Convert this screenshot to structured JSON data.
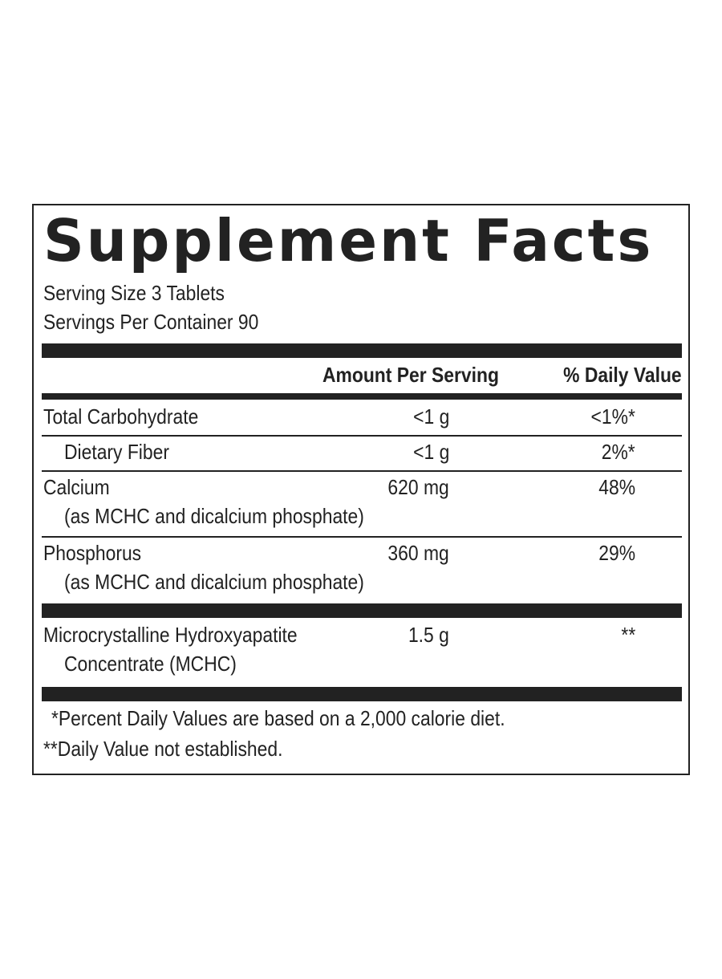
{
  "title": "Supplement Facts",
  "serving_size": "Serving Size 3 Tablets",
  "servings_per_container": "Servings Per Container 90",
  "header": {
    "amount": "Amount Per Serving",
    "dv": "% Daily Value"
  },
  "rows": [
    {
      "name": "Total Carbohydrate",
      "amount": "<1 g",
      "dv": "<1%*"
    },
    {
      "name": "Dietary Fiber",
      "amount": "<1 g",
      "dv": "2%*"
    },
    {
      "name": "Calcium",
      "note": "(as MCHC and dicalcium phosphate)",
      "amount": "620 mg",
      "dv": "48%"
    },
    {
      "name": "Phosphorus",
      "note": "(as MCHC and dicalcium phosphate)",
      "amount": "360 mg",
      "dv": "29%"
    },
    {
      "name": "Microcrystalline Hydroxyapatite",
      "note": "Concentrate (MCHC)",
      "amount": "1.5 g",
      "dv": "**"
    }
  ],
  "footnotes": [
    "*Percent Daily Values are based on a 2,000 calorie diet.",
    "**Daily Value not established."
  ]
}
